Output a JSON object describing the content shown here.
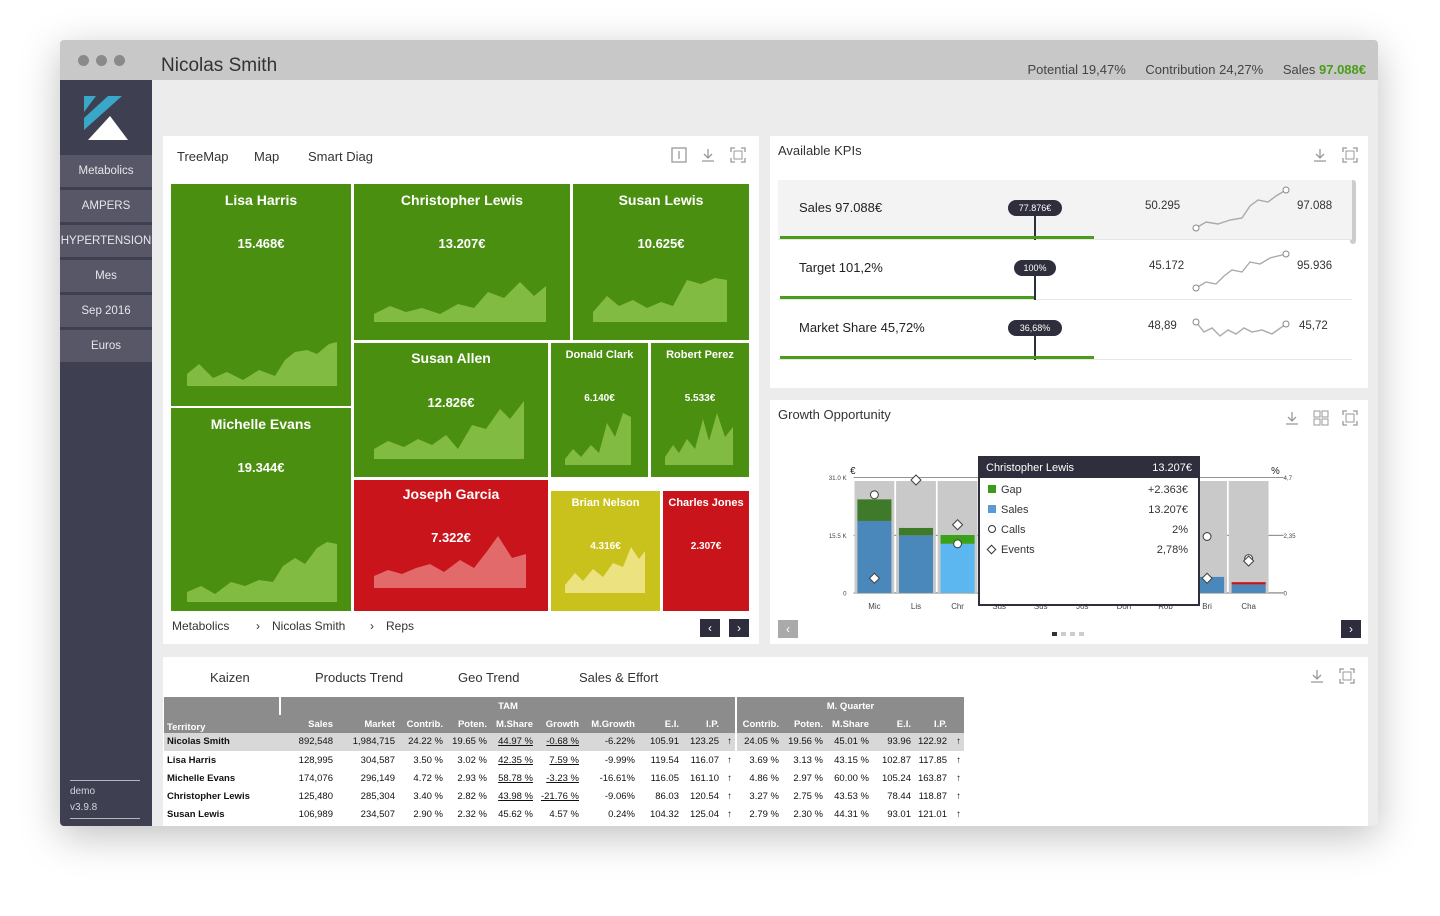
{
  "header": {
    "name": "Nicolas Smith",
    "potential": "Potential 19,47%",
    "contribution": "Contribution 24,27%",
    "sales_label": "Sales",
    "sales_value": "97.088€"
  },
  "sidebar": {
    "items": [
      "Metabolics",
      "AMPERS",
      "HYPERTENSION",
      "Mes",
      "Sep 2016",
      "Euros"
    ],
    "footer_user": "demo",
    "footer_version": "v3.9.8"
  },
  "treemap_panel": {
    "tabs": [
      "TreeMap",
      "Map",
      "Smart Diag"
    ],
    "breadcrumb": [
      "Metabolics",
      "Nicolas Smith",
      "Reps"
    ],
    "tiles": [
      {
        "name": "Lisa Harris",
        "value": "15.468€",
        "status": "green"
      },
      {
        "name": "Michelle Evans",
        "value": "19.344€",
        "status": "green"
      },
      {
        "name": "Christopher Lewis",
        "value": "13.207€",
        "status": "green"
      },
      {
        "name": "Susan Lewis",
        "value": "10.625€",
        "status": "green"
      },
      {
        "name": "Susan Allen",
        "value": "12.826€",
        "status": "green"
      },
      {
        "name": "Donald Clark",
        "value": "6.140€",
        "status": "green"
      },
      {
        "name": "Robert Perez",
        "value": "5.533€",
        "status": "green"
      },
      {
        "name": "Joseph Garcia",
        "value": "7.322€",
        "status": "red"
      },
      {
        "name": "Brian Nelson",
        "value": "4.316€",
        "status": "yellow"
      },
      {
        "name": "Charles Jones",
        "value": "2.307€",
        "status": "red"
      }
    ]
  },
  "kpi_panel": {
    "title": "Available KPIs",
    "rows": [
      {
        "label": "Sales 97.088€",
        "badge": "77.876€",
        "start": "50.295",
        "end": "97.088"
      },
      {
        "label": "Target 101,2%",
        "badge": "100%",
        "start": "45.172",
        "end": "95.936"
      },
      {
        "label": "Market Share 45,72%",
        "badge": "36,68%",
        "start": "48,89",
        "end": "45,72"
      }
    ]
  },
  "growth_panel": {
    "title": "Growth Opportunity",
    "left_unit": "€",
    "right_unit": "%",
    "left_ticks": [
      "31.0 K",
      "15.5 K",
      "0"
    ],
    "right_ticks": [
      "4,7",
      "2,35",
      "0"
    ],
    "tooltip": {
      "name": "Christopher Lewis",
      "total": "13.207€",
      "rows": [
        {
          "label": "Gap",
          "value": "+2.363€"
        },
        {
          "label": "Sales",
          "value": "13.207€"
        },
        {
          "label": "Calls",
          "value": "2%"
        },
        {
          "label": "Events",
          "value": "2,78%"
        }
      ]
    }
  },
  "chart_data": {
    "type": "bar",
    "categories": [
      "Mic",
      "Lis",
      "Chr",
      "Sus",
      "Sus",
      "Jos",
      "Don",
      "Rob",
      "Bri",
      "Cha"
    ],
    "ylim": [
      0,
      31000
    ],
    "y2lim": [
      0,
      4.7
    ],
    "series": [
      {
        "name": "Sales",
        "values": [
          19344,
          15468,
          13207,
          10625,
          12826,
          7322,
          6140,
          5533,
          4316,
          2307
        ]
      },
      {
        "name": "Gap",
        "values": [
          5800,
          2000,
          2363,
          0,
          0,
          0,
          0,
          0,
          0,
          600
        ]
      },
      {
        "name": "Calls",
        "values": [
          4.0,
          0,
          2.0,
          0,
          0,
          0,
          0,
          0,
          2.3,
          1.4
        ]
      },
      {
        "name": "Events",
        "values": [
          0.6,
          4.6,
          2.78,
          0,
          0,
          0,
          0,
          0.2,
          0.6,
          1.3
        ]
      }
    ]
  },
  "bottom_panel": {
    "tabs": [
      "Kaizen",
      "Products Trend",
      "Geo Trend",
      "Sales & Effort"
    ],
    "group_tam": "TAM",
    "group_mq": "M. Quarter",
    "columns": [
      "Territory",
      "Sales",
      "Market",
      "Contrib.",
      "Poten.",
      "M.Share",
      "Growth",
      "M.Growth",
      "E.I.",
      "I.P.",
      "",
      "Contrib.",
      "Poten.",
      "M.Share",
      "E.I.",
      "I.P.",
      ""
    ],
    "rows": [
      [
        "Nicolas Smith",
        "892,548",
        "1,984,715",
        "24.22 %",
        "19.65 %",
        "44.97 %",
        "-0.68 %",
        "-6.22%",
        "105.91",
        "123.25",
        "↑",
        "24.05 %",
        "19.56 %",
        "45.01 %",
        "93.96",
        "122.92",
        "↑"
      ],
      [
        "Lisa Harris",
        "128,995",
        "304,587",
        "3.50 %",
        "3.02 %",
        "42.35 %",
        "7.59 %",
        "-9.99%",
        "119.54",
        "116.07",
        "↑",
        "3.69 %",
        "3.13 %",
        "43.15 %",
        "102.87",
        "117.85",
        "↑"
      ],
      [
        "Michelle Evans",
        "174,076",
        "296,149",
        "4.72 %",
        "2.93 %",
        "58.78 %",
        "-3.23 %",
        "-16.61%",
        "116.05",
        "161.10",
        "↑",
        "4.86 %",
        "2.97 %",
        "60.00 %",
        "105.24",
        "163.87",
        "↑"
      ],
      [
        "Christopher Lewis",
        "125,480",
        "285,304",
        "3.40 %",
        "2.82 %",
        "43.98 %",
        "-21.76 %",
        "-9.06%",
        "86.03",
        "120.54",
        "↑",
        "3.27 %",
        "2.75 %",
        "43.53 %",
        "78.44",
        "118.87",
        "↑"
      ],
      [
        "Susan Lewis",
        "106,989",
        "234,507",
        "2.90 %",
        "2.32 %",
        "45.62 %",
        "4.57 %",
        "0.24%",
        "104.32",
        "125.04",
        "↑",
        "2.79 %",
        "2.30 %",
        "44.31 %",
        "93.01",
        "121.01",
        "↑"
      ]
    ]
  },
  "colors": {
    "tile_green": "#4a8f10",
    "tile_red": "#c8141a",
    "tile_yellow": "#c9c21c",
    "sidebar": "#3f3f52",
    "bar_sales": "#5b9bd5",
    "bar_gap": "#3a7a1a",
    "bar_muted": "#4a7fa8"
  }
}
